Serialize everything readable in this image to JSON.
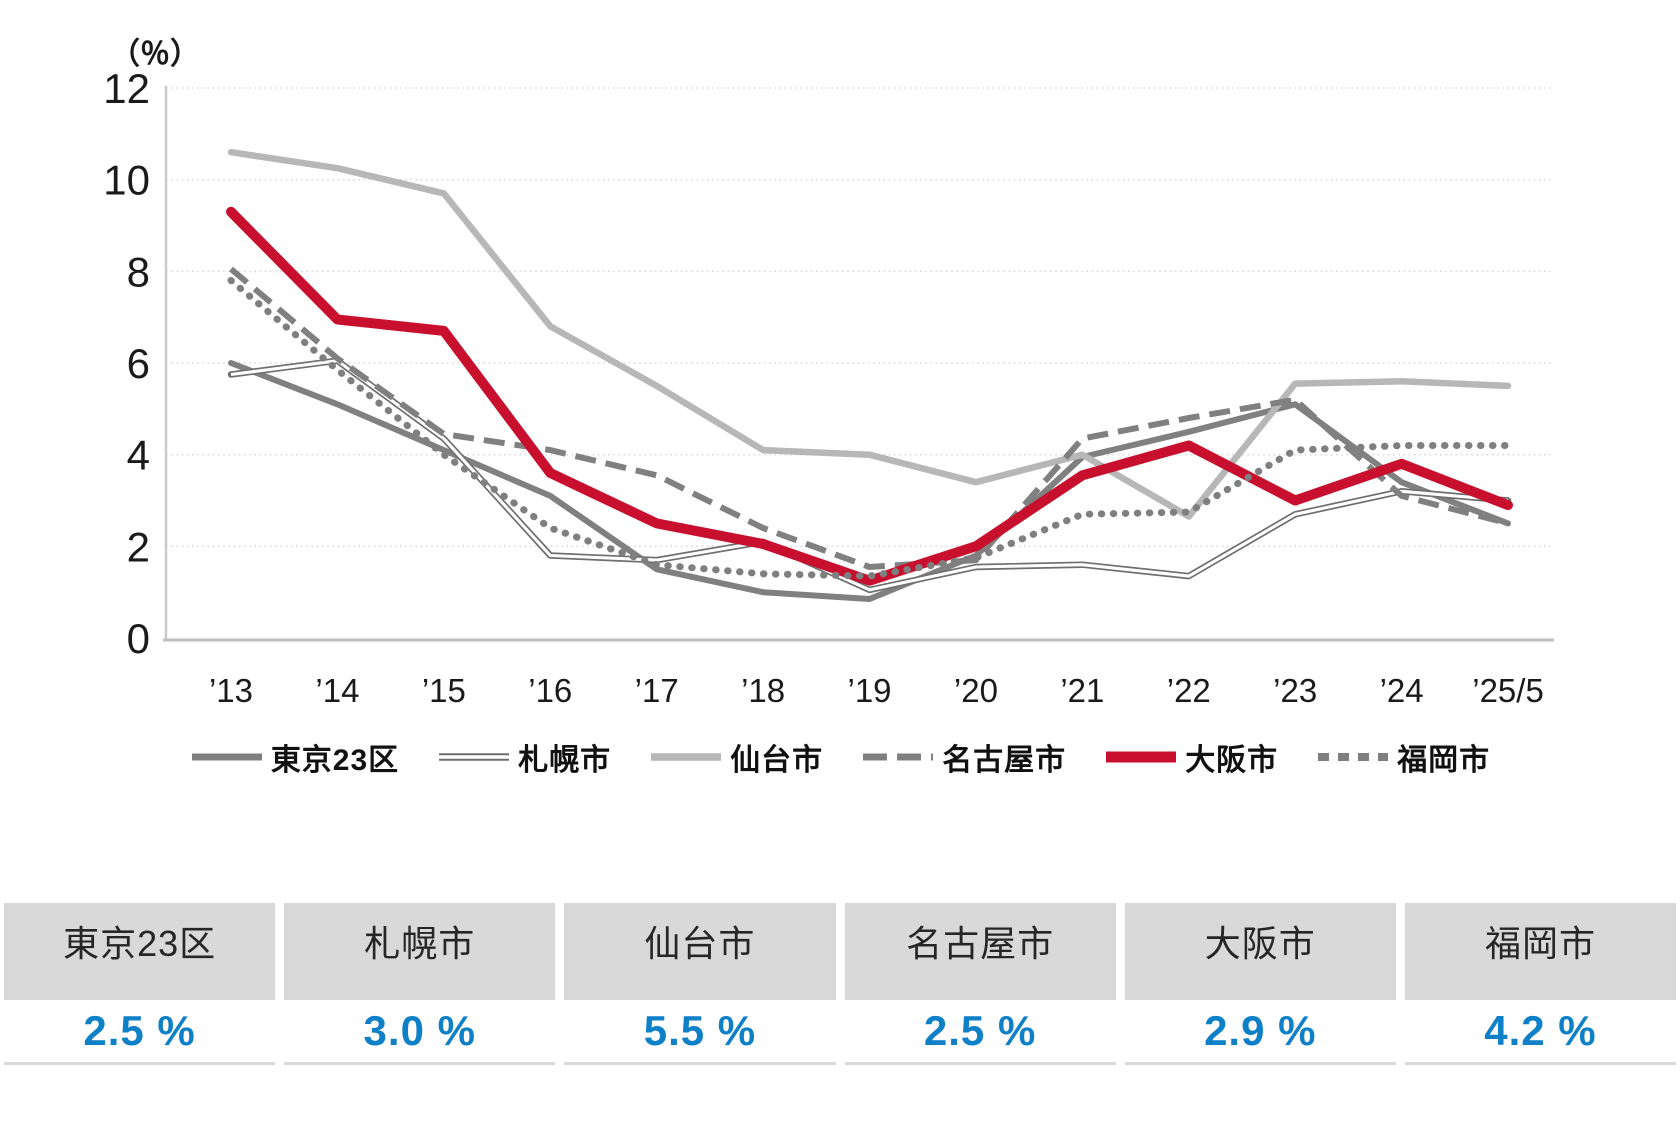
{
  "chart_data": {
    "type": "line",
    "title": "",
    "ylabel": "（％）",
    "xlabel": "",
    "ylim": [
      0,
      12
    ],
    "y_ticks": [
      0,
      2,
      4,
      6,
      8,
      10,
      12
    ],
    "grid": "horizontal-dotted",
    "legend_position": "bottom",
    "categories": [
      "’13",
      "’14",
      "’15",
      "’16",
      "’17",
      "’18",
      "’19",
      "’20",
      "’21",
      "’22",
      "’23",
      "’24",
      "’25/5"
    ],
    "series": [
      {
        "name": "東京23区",
        "key": "tokyo23",
        "style": "solid",
        "color": "#808080",
        "width": 6,
        "values": [
          6.0,
          5.1,
          4.1,
          3.1,
          1.5,
          1.0,
          0.85,
          1.8,
          3.95,
          4.5,
          5.1,
          3.4,
          2.5
        ]
      },
      {
        "name": "札幌市",
        "key": "sapporo",
        "style": "double",
        "color": "#6f6f6f",
        "width": 6.5,
        "values": [
          5.75,
          6.05,
          4.35,
          1.8,
          1.7,
          2.1,
          1.05,
          1.55,
          1.6,
          1.35,
          2.7,
          3.2,
          3.0
        ]
      },
      {
        "name": "仙台市",
        "key": "sendai",
        "style": "solid",
        "color": "#b7b7b7",
        "width": 6.5,
        "values": [
          10.6,
          10.25,
          9.7,
          6.8,
          5.5,
          4.1,
          4.0,
          3.4,
          4.0,
          2.65,
          5.55,
          5.6,
          5.5
        ]
      },
      {
        "name": "名古屋市",
        "key": "nagoya",
        "style": "dashed",
        "color": "#808080",
        "width": 6,
        "values": [
          8.05,
          6.1,
          4.45,
          4.1,
          3.55,
          2.4,
          1.55,
          1.7,
          4.35,
          4.8,
          5.2,
          3.1,
          2.5
        ]
      },
      {
        "name": "大阪市",
        "key": "osaka",
        "style": "solid",
        "color": "#c8102e",
        "width": 10,
        "values": [
          9.3,
          6.95,
          6.7,
          3.6,
          2.5,
          2.05,
          1.25,
          2.0,
          3.55,
          4.2,
          3.0,
          3.8,
          2.9
        ]
      },
      {
        "name": "福岡市",
        "key": "fukuoka",
        "style": "dotted",
        "color": "#7f7f7f",
        "width": 7,
        "values": [
          7.8,
          5.85,
          4.0,
          2.4,
          1.6,
          1.4,
          1.35,
          1.75,
          2.7,
          2.75,
          4.1,
          4.2,
          4.2
        ]
      }
    ]
  },
  "table": {
    "columns": [
      {
        "name": "東京23区",
        "value": "2.5 %"
      },
      {
        "name": "札幌市",
        "value": "3.0 %"
      },
      {
        "name": "仙台市",
        "value": "5.5 %"
      },
      {
        "name": "名古屋市",
        "value": "2.5 %"
      },
      {
        "name": "大阪市",
        "value": "2.9 %"
      },
      {
        "name": "福岡市",
        "value": "4.2 %"
      }
    ],
    "value_color": "#0e80c7",
    "header_bg": "#d9d9d9"
  },
  "axis_colors": {
    "gridline": "#d9d9d9",
    "baseline": "#bfbfbf",
    "axisline": "#c9c9c9"
  }
}
